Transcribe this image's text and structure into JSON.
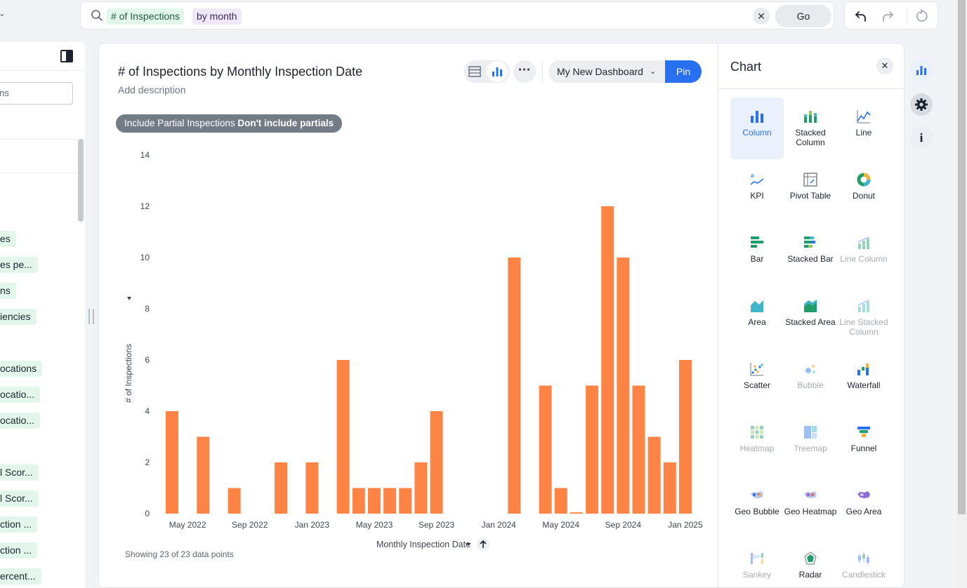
{
  "search": {
    "measure_token": "# of Inspections",
    "attribute_token": "by month",
    "go_label": "Go"
  },
  "left_panel": {
    "search_placeholder": "ns",
    "items": [
      "es",
      "es pe...",
      "ns",
      "iencies",
      "ocations",
      "ocatio...",
      "ocatio...",
      "l Scor...",
      "l Scor...",
      "ction ...",
      "ction ...",
      "ercent..."
    ]
  },
  "chart_card": {
    "title": "# of Inspections by Monthly Inspection Date",
    "description": "Add description",
    "dashboard_select": "My New Dashboard",
    "pin_label": "Pin",
    "filter_chip_label": "Include Partial Inspections",
    "filter_chip_value": "Don't include partials",
    "footer_note": "Showing 23 of 23 data points"
  },
  "chart_data": {
    "type": "bar",
    "xlabel": "Monthly Inspection Date",
    "ylabel": "# of Inspections",
    "ylim": [
      0,
      14
    ],
    "yticks": [
      0,
      2,
      4,
      6,
      8,
      10,
      12,
      14
    ],
    "ytick_labels": [
      "0",
      "2",
      "4",
      "6",
      "8",
      "10",
      "12",
      "14"
    ],
    "color": "#fd8445",
    "x_tick_labels": [
      "May 2022",
      "Sep 2022",
      "Jan 2023",
      "May 2023",
      "Sep 2023",
      "Jan 2024",
      "May 2024",
      "Sep 2024",
      "Jan 2025"
    ],
    "categories": [
      "Apr 2022",
      "Jun 2022",
      "Aug 2022",
      "Nov 2022",
      "Jan 2023",
      "Mar 2023",
      "Apr 2023",
      "May 2023",
      "Jun 2023",
      "Jul 2023",
      "Aug 2023",
      "Sep 2023",
      "Feb 2024",
      "Apr 2024",
      "May 2024",
      "Jun 2024",
      "Jul 2024",
      "Aug 2024",
      "Sep 2024",
      "Oct 2024",
      "Nov 2024",
      "Dec 2024",
      "Jan 2025"
    ],
    "values": [
      4,
      3,
      1,
      2,
      2,
      6,
      1,
      1,
      1,
      1,
      2,
      4,
      10,
      5,
      1,
      0.05,
      5,
      12,
      10,
      5,
      3,
      2,
      6
    ]
  },
  "chart_picker": {
    "title": "Chart",
    "types": [
      {
        "label": "Column",
        "icon": "column-chart-icon",
        "state": "selected"
      },
      {
        "label": "Stacked Column",
        "icon": "stacked-column-chart-icon",
        "state": "enabled"
      },
      {
        "label": "Line",
        "icon": "line-chart-icon",
        "state": "enabled"
      },
      {
        "label": "KPI",
        "icon": "kpi-chart-icon",
        "state": "enabled"
      },
      {
        "label": "Pivot Table",
        "icon": "pivot-table-icon",
        "state": "enabled"
      },
      {
        "label": "Donut",
        "icon": "donut-chart-icon",
        "state": "enabled"
      },
      {
        "label": "Bar",
        "icon": "bar-chart-icon",
        "state": "enabled"
      },
      {
        "label": "Stacked Bar",
        "icon": "stacked-bar-chart-icon",
        "state": "enabled"
      },
      {
        "label": "Line Column",
        "icon": "line-column-chart-icon",
        "state": "disabled"
      },
      {
        "label": "Area",
        "icon": "area-chart-icon",
        "state": "enabled"
      },
      {
        "label": "Stacked Area",
        "icon": "stacked-area-chart-icon",
        "state": "enabled"
      },
      {
        "label": "Line Stacked Column",
        "icon": "line-stacked-column-chart-icon",
        "state": "disabled"
      },
      {
        "label": "Scatter",
        "icon": "scatter-chart-icon",
        "state": "enabled"
      },
      {
        "label": "Bubble",
        "icon": "bubble-chart-icon",
        "state": "disabled"
      },
      {
        "label": "Waterfall",
        "icon": "waterfall-chart-icon",
        "state": "enabled"
      },
      {
        "label": "Heatmap",
        "icon": "heatmap-chart-icon",
        "state": "disabled"
      },
      {
        "label": "Treemap",
        "icon": "treemap-chart-icon",
        "state": "disabled"
      },
      {
        "label": "Funnel",
        "icon": "funnel-chart-icon",
        "state": "enabled"
      },
      {
        "label": "Geo Bubble",
        "icon": "geo-bubble-chart-icon",
        "state": "enabled"
      },
      {
        "label": "Geo Heatmap",
        "icon": "geo-heatmap-chart-icon",
        "state": "enabled"
      },
      {
        "label": "Geo Area",
        "icon": "geo-area-chart-icon",
        "state": "enabled"
      },
      {
        "label": "Sankey",
        "icon": "sankey-chart-icon",
        "state": "disabled"
      },
      {
        "label": "Radar",
        "icon": "radar-chart-icon",
        "state": "enabled"
      },
      {
        "label": "Candlestick",
        "icon": "candlestick-chart-icon",
        "state": "disabled"
      }
    ]
  },
  "colors": {
    "accent": "#2770ef",
    "bar": "#fd8445",
    "measure_token_bg": "#e3f6ec",
    "attribute_token_bg": "#efe8f8"
  }
}
